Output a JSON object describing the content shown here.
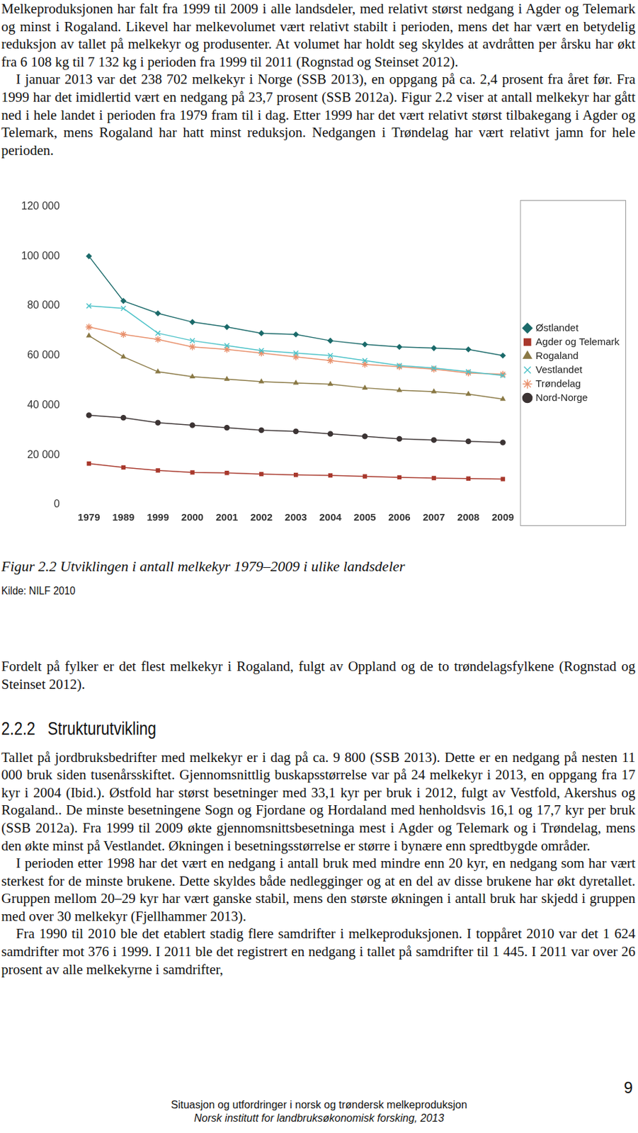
{
  "text_before": [
    "Melkeproduksjonen har falt fra 1999 til 2009 i alle landsdeler, med relativt størst nedgang i Agder og Telemark og minst i Rogaland. Likevel har melkevolumet vært relativt stabilt i perioden, mens det har vært en betydelig reduksjon av tallet på melkekyr og produsenter. At volumet har holdt seg skyldes at avdråtten per årsku har økt fra 6 108 kg til 7 132 kg i perioden fra 1999 til 2011 (Rognstad og Steinset 2012).",
    "I januar 2013 var det 238 702 melkekyr i Norge (SSB 2013), en oppgang på ca. 2,4 prosent fra året før. Fra 1999 har det imidlertid vært en nedgang på 23,7 prosent (SSB 2012a). Figur 2.2 viser at antall melkekyr har gått ned i hele landet i perioden fra 1979 fram til i dag. Etter 1999 har det vært relativt størst tilbakegang i Agder og Telemark, mens Rogaland har hatt minst reduksjon. Nedgangen i Trøndelag har vært relativt jamn for hele perioden."
  ],
  "chart_data": {
    "type": "line",
    "categories": [
      "1979",
      "1989",
      "1999",
      "2000",
      "2001",
      "2002",
      "2003",
      "2004",
      "2005",
      "2006",
      "2007",
      "2008",
      "2009"
    ],
    "series": [
      {
        "name": "Østlandet",
        "color": "#1b6a6a",
        "marker": "diamond",
        "values": [
          100000,
          82000,
          77000,
          73500,
          71500,
          69000,
          68500,
          66000,
          64500,
          63500,
          63000,
          62500,
          60000
        ]
      },
      {
        "name": "Agder og Telemark",
        "color": "#a8382c",
        "marker": "square",
        "values": [
          16500,
          15000,
          13800,
          13000,
          12800,
          12300,
          12000,
          11800,
          11400,
          11000,
          10700,
          10500,
          10300
        ]
      },
      {
        "name": "Rogaland",
        "color": "#8a7945",
        "marker": "triangle",
        "values": [
          68000,
          59500,
          53500,
          51500,
          50500,
          49500,
          49000,
          48500,
          47000,
          46000,
          45500,
          44500,
          42500
        ]
      },
      {
        "name": "Vestlandet",
        "color": "#4cc2c8",
        "marker": "x",
        "values": [
          80000,
          79000,
          69000,
          66000,
          64000,
          62000,
          61000,
          60000,
          58000,
          56000,
          55000,
          53500,
          52000
        ]
      },
      {
        "name": "Trøndelag",
        "color": "#e8906c",
        "marker": "star",
        "values": [
          71500,
          68500,
          66500,
          63500,
          62500,
          61000,
          59500,
          58000,
          56500,
          55500,
          54500,
          53000,
          52500
        ]
      },
      {
        "name": "Nord-Norge",
        "color": "#3c3434",
        "marker": "circle",
        "values": [
          36000,
          35000,
          33000,
          32000,
          31000,
          30000,
          29500,
          28500,
          27500,
          26500,
          26000,
          25500,
          25000
        ]
      }
    ],
    "ylim": [
      0,
      120000
    ],
    "yticks": [
      0,
      {
        "value": 20000,
        "label": "20 000"
      },
      {
        "value": 40000,
        "label": "40 000"
      },
      {
        "value": 60000,
        "label": "60 000"
      },
      {
        "value": 80000,
        "label": "80 000"
      },
      {
        "value": 100000,
        "label": "100 000"
      },
      {
        "value": 120000,
        "label": "120 000"
      }
    ],
    "grid": false,
    "legend": "right"
  },
  "caption": "Figur 2.2 Utviklingen i antall melkekyr 1979–2009 i ulike landsdeler",
  "source": "Kilde: NILF 2010",
  "text_after": [
    "Fordelt på fylker er det flest melkekyr i Rogaland, fulgt av Oppland og de to trøndelagsfylkene (Rognstad og Steinset 2012)."
  ],
  "section": {
    "number": "2.2.2",
    "title": "Strukturutvikling"
  },
  "section_text": [
    "Tallet på jordbruksbedrifter med melkekyr er i dag på ca. 9 800 (SSB 2013). Dette er en nedgang på nesten 11 000 bruk siden tusenårsskiftet. Gjennomsnittlig buskapsstørrelse var på 24 melkekyr i 2013, en oppgang fra 17 kyr i 2004 (Ibid.). Østfold har størst besetninger med 33,1 kyr per bruk i 2012, fulgt av Vestfold, Akershus og Rogaland.. De minste besetningene Sogn og Fjordane og Hordaland med henholdsvis 16,1 og 17,7 kyr per bruk (SSB 2012a). Fra 1999 til 2009 økte gjennomsnittsbesetninga mest i Agder og Telemark og i Trøndelag, mens den økte minst på Vestlandet. Økningen i besetningsstørrelse er større i bynære enn spredtbygde områder.",
    "I perioden etter 1998 har det vært en nedgang i antall bruk med mindre enn 20 kyr, en nedgang som har vært sterkest for de minste brukene. Dette skyldes både nedlegginger og at en del av disse brukene har økt dyretallet. Gruppen mellom 20–29 kyr har vært ganske stabil, mens den største økningen i antall bruk har skjedd i gruppen med over 30 melkekyr (Fjellhammer 2013).",
    "Fra 1990 til 2010 ble det etablert stadig flere samdrifter i melkeproduksjonen. I toppåret 2010 var det 1 624 samdrifter mot 376 i 1999. I 2011 ble det registrert en nedgang i tallet på samdrifter til 1 445. I 2011 var over 26 prosent av alle melkekyrne i samdrifter,"
  ],
  "page_number": 9,
  "footer": [
    "Situasjon og utfordringer i norsk og trøndersk melkeproduksjon",
    "Norsk institutt for landbruksøkonomisk forsking, 2013"
  ]
}
